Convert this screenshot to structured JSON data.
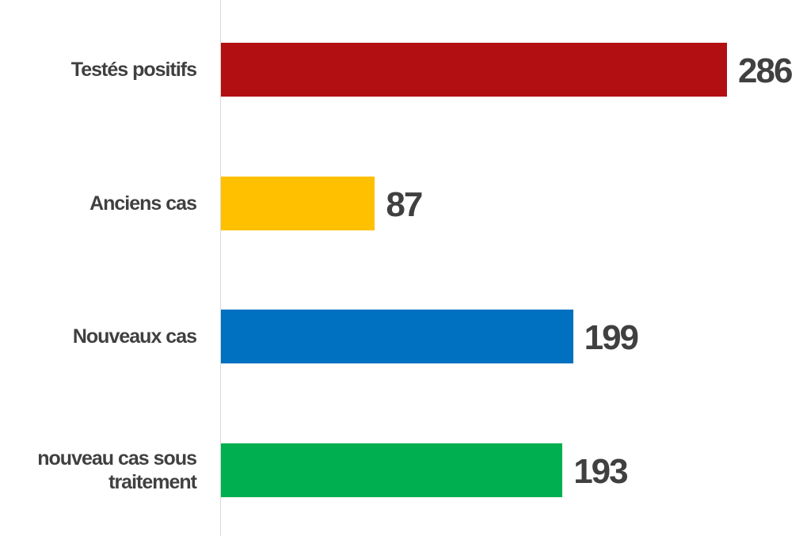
{
  "chart_data": {
    "type": "bar",
    "orientation": "horizontal",
    "categories": [
      "Testés positifs",
      "Anciens cas",
      "Nouveaux cas",
      "nouveau cas sous traitement"
    ],
    "values": [
      286,
      87,
      199,
      193
    ],
    "colors": [
      "#b10f11",
      "#ffc000",
      "#0070c0",
      "#00b050"
    ]
  }
}
